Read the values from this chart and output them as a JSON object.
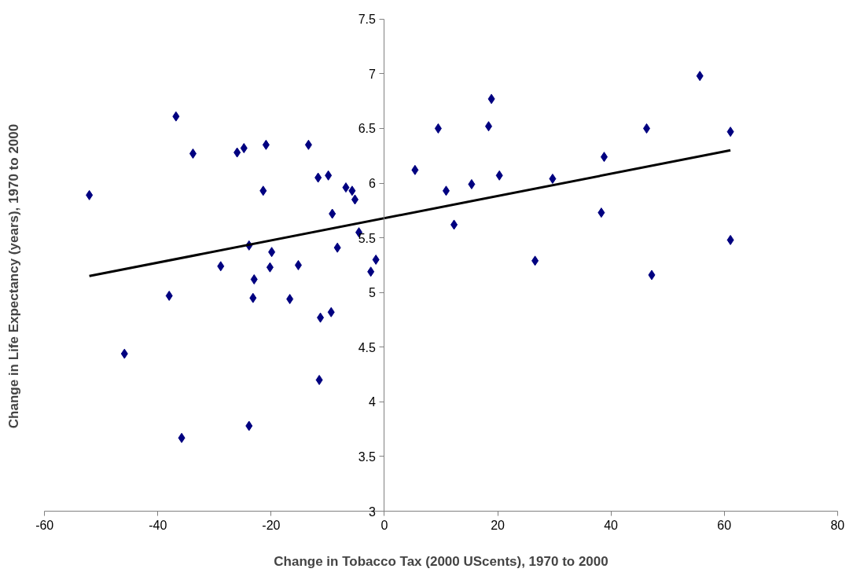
{
  "chart_data": {
    "type": "scatter",
    "xlabel": "Change in Tobacco Tax (2000 UScents), 1970 to 2000",
    "ylabel": "Change in Life Expectancy (years), 1970 to 2000",
    "xlim": [
      -60,
      80
    ],
    "xticks": [
      -60,
      -40,
      -20,
      0,
      20,
      40,
      60,
      80
    ],
    "ylim": [
      3,
      7.5
    ],
    "yticks": [
      3,
      3.5,
      4,
      4.5,
      5,
      5.5,
      6,
      6.5,
      7,
      7.5
    ],
    "series": [
      {
        "marker": "diamond",
        "color": "#000080",
        "x": [
          -52.1,
          -45.9,
          -36.8,
          -33.8,
          -38.0,
          -35.8,
          -28.9,
          -26.0,
          -24.8,
          -20.9,
          -21.4,
          -23.9,
          -23.0,
          -23.2,
          -23.9,
          -20.2,
          -19.9,
          -15.2,
          -16.7,
          -13.4,
          -11.7,
          -9.9,
          -11.3,
          -9.4,
          -11.5,
          -9.2,
          -6.8,
          -5.7,
          -5.2,
          -8.3,
          -4.5,
          -2.4,
          -1.5,
          5.4,
          9.5,
          10.9,
          12.3,
          15.4,
          18.4,
          18.9,
          20.3,
          26.6,
          29.7,
          38.3,
          38.8,
          46.3,
          47.2,
          55.7,
          61.1,
          61.1
        ],
        "values": [
          5.89,
          4.44,
          6.61,
          6.27,
          4.97,
          3.67,
          5.24,
          6.28,
          6.32,
          6.35,
          5.93,
          5.43,
          5.12,
          4.95,
          3.78,
          5.23,
          5.37,
          5.25,
          4.94,
          6.35,
          6.05,
          6.07,
          4.77,
          4.82,
          4.2,
          5.72,
          5.96,
          5.93,
          5.85,
          5.41,
          5.55,
          5.19,
          5.3,
          6.12,
          6.5,
          5.93,
          5.62,
          5.99,
          6.52,
          6.77,
          6.07,
          5.29,
          6.04,
          5.73,
          6.24,
          6.5,
          5.16,
          6.98,
          6.47,
          5.48
        ]
      },
      {
        "type": "line",
        "marker": "none",
        "color": "#000000",
        "x": [
          -52.1,
          61.1
        ],
        "values": [
          5.15,
          6.3
        ]
      }
    ]
  }
}
